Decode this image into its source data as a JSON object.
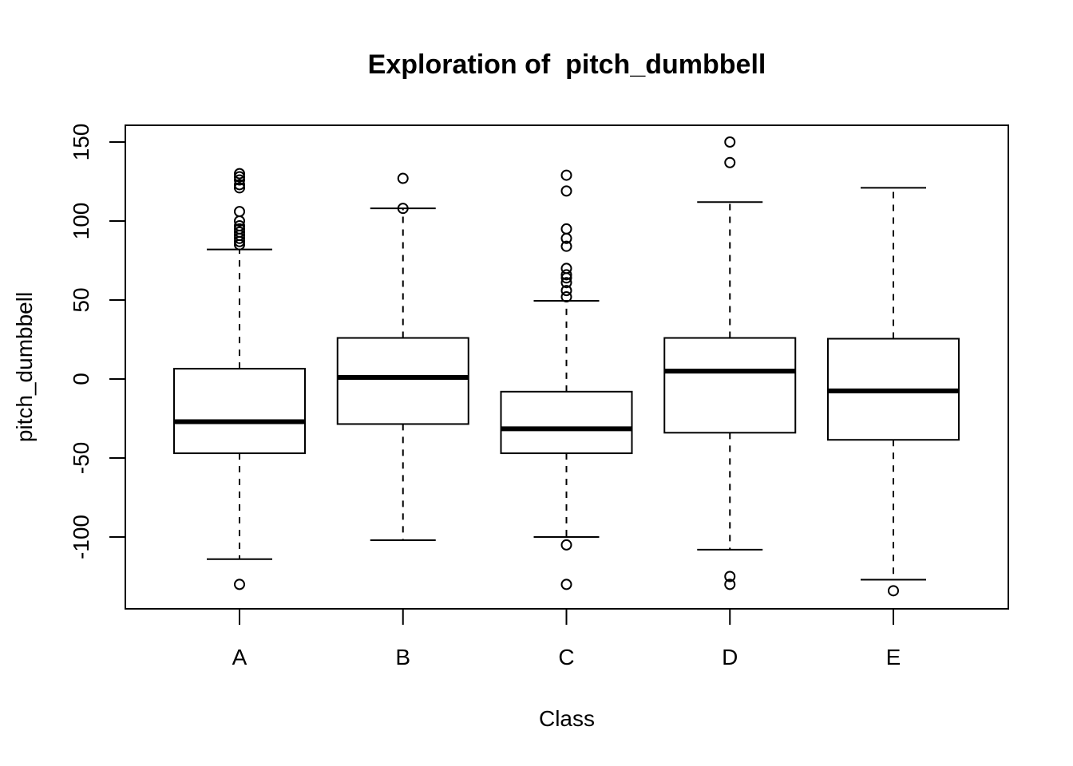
{
  "chart_data": {
    "type": "boxplot",
    "title": "Exploration of  pitch_dumbbell",
    "xlabel": "Class",
    "ylabel": "pitch_dumbbell",
    "ylim": [
      -145,
      160
    ],
    "yticks": [
      -100,
      -50,
      0,
      50,
      100,
      150
    ],
    "ytick_labels": [
      "-100",
      "-50",
      "0",
      "50",
      "100",
      "150"
    ],
    "categories": [
      "A",
      "B",
      "C",
      "D",
      "E"
    ],
    "grid": false,
    "boxes": [
      {
        "category": "A",
        "whisker_low": -114,
        "q1": -47,
        "median": -27,
        "q3": 6.5,
        "whisker_high": 82,
        "outliers": [
          -130,
          85,
          87,
          89,
          91,
          93,
          95,
          97,
          100,
          106,
          121,
          123,
          126,
          128,
          130
        ]
      },
      {
        "category": "B",
        "whisker_low": -102,
        "q1": -28.5,
        "median": 1,
        "q3": 26,
        "whisker_high": 108,
        "outliers": [
          108,
          127
        ]
      },
      {
        "category": "C",
        "whisker_low": -100,
        "q1": -47,
        "median": -31.5,
        "q3": -8,
        "whisker_high": 49.5,
        "outliers": [
          -130,
          -105,
          52,
          56,
          61,
          64,
          66,
          70,
          84,
          89,
          95,
          119,
          129
        ]
      },
      {
        "category": "D",
        "whisker_low": -108,
        "q1": -34,
        "median": 5,
        "q3": 26,
        "whisker_high": 112,
        "outliers": [
          -130,
          -125,
          137,
          150
        ]
      },
      {
        "category": "E",
        "whisker_low": -127,
        "q1": -38.5,
        "median": -7.5,
        "q3": 25.5,
        "whisker_high": 121,
        "outliers": [
          -134
        ]
      }
    ]
  }
}
